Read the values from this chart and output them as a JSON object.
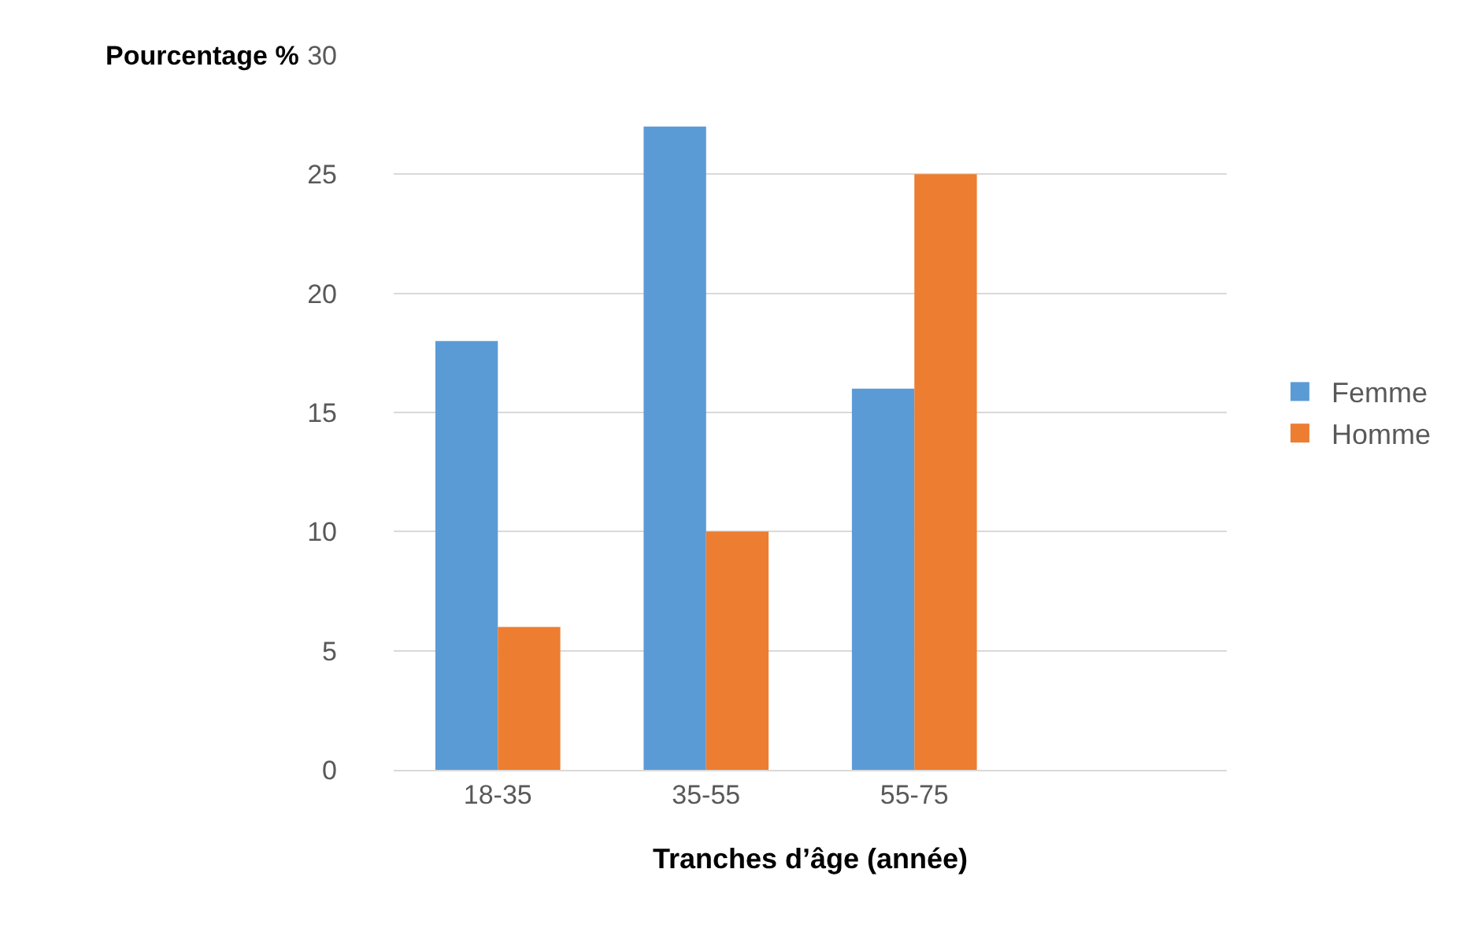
{
  "chart_data": {
    "type": "bar",
    "xlabel": "Tranches d’âge (année)",
    "ylabel": "Pourcentage %",
    "categories": [
      "18-35",
      "35-55",
      "55-75",
      null
    ],
    "series": [
      {
        "name": "Femme",
        "color": "#5b9bd5",
        "values": [
          18,
          27,
          16,
          null
        ]
      },
      {
        "name": "Homme",
        "color": "#ed7d31",
        "values": [
          6,
          10,
          25,
          null
        ]
      }
    ],
    "ylim": [
      0,
      30
    ],
    "yticks": [
      0,
      5,
      10,
      15,
      20,
      25,
      30
    ],
    "grid": "y",
    "legend": "right"
  }
}
